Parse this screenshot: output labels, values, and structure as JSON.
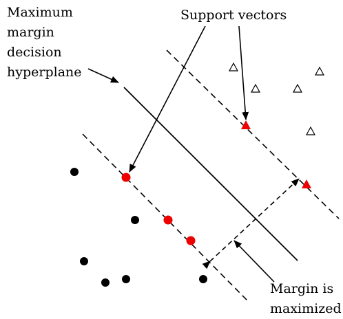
{
  "labels": {
    "hyperplane": [
      "Maximum",
      "margin",
      "decision",
      "hyperplane"
    ],
    "support_vectors": "Support vectors",
    "margin": [
      "Margin is",
      "maximized"
    ]
  },
  "colors": {
    "support_vector": "#ee0000",
    "point": "#000000",
    "line": "#000000",
    "background": "#ffffff"
  }
}
